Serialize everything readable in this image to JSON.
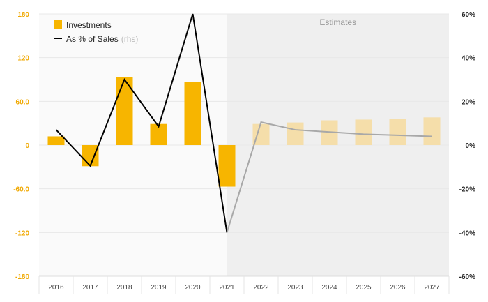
{
  "chart_data": {
    "type": "bar",
    "categories": [
      "2016",
      "2017",
      "2018",
      "2019",
      "2020",
      "2021",
      "2022",
      "2023",
      "2024",
      "2025",
      "2026",
      "2027"
    ],
    "series": [
      {
        "name": "Investments",
        "type": "bar",
        "axis": "left",
        "values": [
          12,
          -29,
          93,
          29,
          87,
          -57,
          29,
          31,
          34,
          35,
          36,
          38
        ]
      },
      {
        "name": "As % of Sales",
        "name_suffix": "(rhs)",
        "type": "line",
        "axis": "right",
        "values": [
          7,
          -9.5,
          30,
          8.5,
          60,
          -40,
          10.5,
          7,
          6,
          5,
          4.5,
          4
        ]
      }
    ],
    "estimate_start_index": 6,
    "estimates_label": "Estimates",
    "y_left": {
      "min": -180,
      "max": 180,
      "ticks": [
        "180",
        "120",
        "60.0",
        "0",
        "-60.0",
        "-120",
        "-180"
      ]
    },
    "y_right": {
      "min": -60,
      "max": 60,
      "ticks": [
        "60%",
        "40%",
        "20%",
        "0%",
        "-20%",
        "-40%",
        "-60%"
      ]
    },
    "legend_position": "top-left",
    "grid": true,
    "colors": {
      "bar": "#f7b500",
      "bar_estimate": "#f5deaa",
      "line": "#000000",
      "line_estimate": "#a8a8a8",
      "left_tick": "#f0a800",
      "estimate_shade": "#efefef",
      "grid": "#e8e8e8"
    }
  }
}
